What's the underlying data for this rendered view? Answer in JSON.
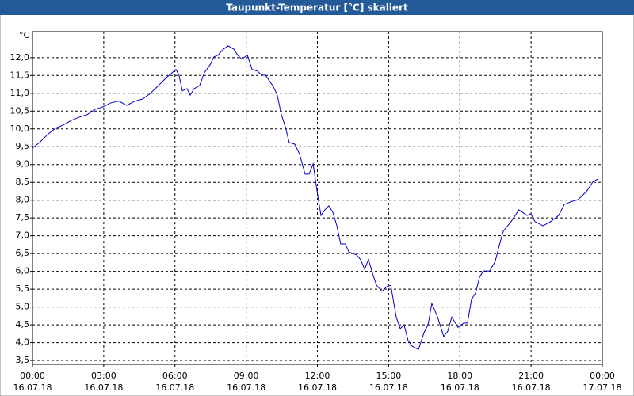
{
  "chart_data": {
    "type": "line",
    "title": "Taupunkt-Temperatur [°C] skaliert",
    "y_unit": "°C",
    "x": [
      0,
      0.3,
      0.63,
      0.97,
      1.3,
      1.64,
      1.97,
      2.3,
      2.64,
      2.97,
      3.3,
      3.64,
      3.97,
      4.31,
      4.64,
      4.97,
      5.31,
      5.64,
      6.04,
      6.17,
      6.31,
      6.51,
      6.64,
      6.81,
      7.04,
      7.24,
      7.48,
      7.64,
      7.81,
      8.04,
      8.24,
      8.48,
      8.64,
      8.81,
      9.05,
      9.25,
      9.48,
      9.65,
      9.81,
      9.98,
      10.15,
      10.31,
      10.48,
      10.65,
      10.81,
      11.05,
      11.25,
      11.48,
      11.65,
      11.82,
      11.98,
      12.15,
      12.32,
      12.48,
      12.65,
      12.82,
      12.98,
      13.18,
      13.32,
      13.65,
      13.82,
      13.99,
      14.15,
      14.32,
      14.49,
      14.72,
      14.92,
      15.09,
      15.32,
      15.49,
      15.65,
      15.82,
      15.99,
      16.26,
      16.49,
      16.66,
      16.82,
      17.06,
      17.32,
      17.49,
      17.66,
      17.92,
      18.16,
      18.32,
      18.49,
      18.66,
      18.83,
      18.99,
      19.26,
      19.49,
      19.66,
      19.83,
      20.16,
      20.49,
      20.83,
      20.99,
      21.16,
      21.5,
      21.83,
      22.16,
      22.4,
      22.66,
      22.99,
      23.33,
      23.6,
      23.83
    ],
    "series": [
      {
        "name": "Taupunkt-Temperatur",
        "color": "#0000cc",
        "values": [
          9.46,
          9.62,
          9.84,
          10.02,
          10.11,
          10.24,
          10.33,
          10.4,
          10.55,
          10.62,
          10.73,
          10.78,
          10.66,
          10.78,
          10.84,
          11.0,
          11.22,
          11.44,
          11.67,
          11.51,
          11.07,
          11.13,
          10.95,
          11.13,
          11.22,
          11.58,
          11.8,
          12.02,
          12.07,
          12.24,
          12.33,
          12.24,
          12.07,
          11.96,
          12.07,
          11.67,
          11.62,
          11.51,
          11.51,
          11.35,
          11.18,
          10.95,
          10.4,
          10.06,
          9.62,
          9.57,
          9.29,
          8.73,
          8.73,
          9.02,
          8.28,
          7.57,
          7.73,
          7.84,
          7.66,
          7.28,
          6.77,
          6.77,
          6.55,
          6.46,
          6.33,
          6.06,
          6.33,
          5.95,
          5.61,
          5.44,
          5.57,
          5.61,
          4.72,
          4.39,
          4.5,
          4.06,
          3.9,
          3.81,
          4.28,
          4.5,
          5.1,
          4.72,
          4.17,
          4.32,
          4.72,
          4.43,
          4.55,
          4.55,
          5.21,
          5.39,
          5.84,
          6.01,
          6.01,
          6.28,
          6.73,
          7.13,
          7.4,
          7.73,
          7.57,
          7.62,
          7.4,
          7.28,
          7.4,
          7.57,
          7.88,
          7.95,
          8.02,
          8.24,
          8.51,
          8.6
        ]
      }
    ],
    "xlim": [
      0,
      24
    ],
    "xticks": [
      {
        "value": 0,
        "label": "00:00"
      },
      {
        "value": 3,
        "label": "03:00"
      },
      {
        "value": 6,
        "label": "06:00"
      },
      {
        "value": 9,
        "label": "09:00"
      },
      {
        "value": 12,
        "label": "12:00"
      },
      {
        "value": 15,
        "label": "15:00"
      },
      {
        "value": 18,
        "label": "18:00"
      },
      {
        "value": 21,
        "label": "21:00"
      },
      {
        "value": 24,
        "label": "00:00"
      }
    ],
    "xtick_dates": [
      "16.07.18",
      "16.07.18",
      "16.07.18",
      "16.07.18",
      "16.07.18",
      "16.07.18",
      "16.07.18",
      "16.07.18",
      "17.07.18"
    ],
    "ylim": [
      3.39,
      12.73
    ],
    "yticks": [
      {
        "value": 3.5,
        "label": "3,5"
      },
      {
        "value": 4,
        "label": "4,0"
      },
      {
        "value": 4.5,
        "label": "4,5"
      },
      {
        "value": 5,
        "label": "5,0"
      },
      {
        "value": 5.5,
        "label": "5,5"
      },
      {
        "value": 6,
        "label": "6,0"
      },
      {
        "value": 6.5,
        "label": "6,5"
      },
      {
        "value": 7,
        "label": "7,0"
      },
      {
        "value": 7.5,
        "label": "7,5"
      },
      {
        "value": 8,
        "label": "8,0"
      },
      {
        "value": 8.5,
        "label": "8,5"
      },
      {
        "value": 9,
        "label": "9,0"
      },
      {
        "value": 9.5,
        "label": "9,5"
      },
      {
        "value": 10,
        "label": "10,0"
      },
      {
        "value": 10.5,
        "label": "10,5"
      },
      {
        "value": 11,
        "label": "11,0"
      },
      {
        "value": 11.5,
        "label": "11,5"
      },
      {
        "value": 12,
        "label": "12,0"
      }
    ],
    "grid": true
  }
}
